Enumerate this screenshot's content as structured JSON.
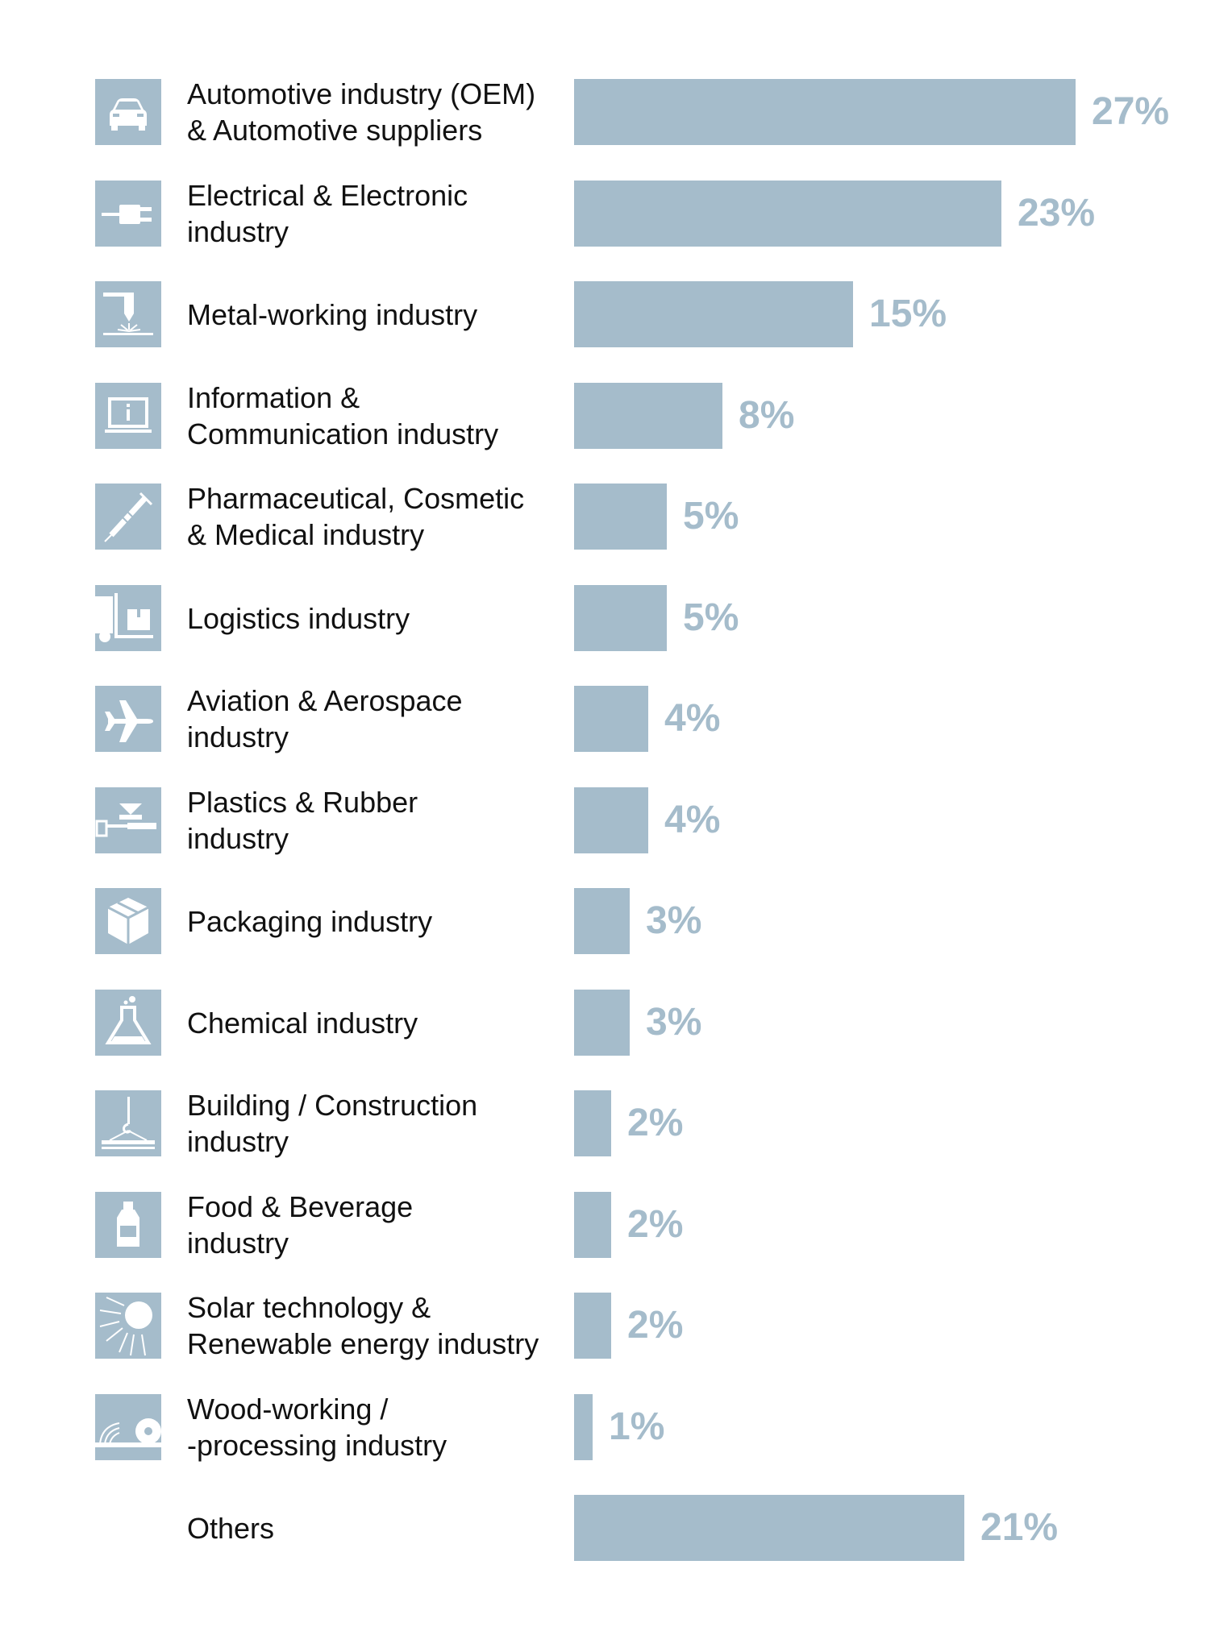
{
  "chart_data": {
    "type": "bar",
    "orientation": "horizontal",
    "xlim": [
      0,
      27
    ],
    "grid": false,
    "legend": "none",
    "bar_color": "#a5bccb",
    "label_color": "#a5bccb",
    "text_color": "#111111",
    "categories": [
      {
        "lines": [
          "Automotive industry (OEM)",
          "& Automotive suppliers"
        ],
        "value": 27,
        "label": "27%",
        "icon": "car-icon"
      },
      {
        "lines": [
          "Electrical & Electronic",
          "industry"
        ],
        "value": 23,
        "label": "23%",
        "icon": "plug-icon"
      },
      {
        "lines": [
          "Metal-working industry"
        ],
        "value": 15,
        "label": "15%",
        "icon": "laser-cutting-icon"
      },
      {
        "lines": [
          "Information &",
          "Communication industry"
        ],
        "value": 8,
        "label": "8%",
        "icon": "monitor-info-icon"
      },
      {
        "lines": [
          "Pharmaceutical, Cosmetic",
          "& Medical industry"
        ],
        "value": 5,
        "label": "5%",
        "icon": "syringe-icon"
      },
      {
        "lines": [
          "Logistics industry"
        ],
        "value": 5,
        "label": "5%",
        "icon": "forklift-icon"
      },
      {
        "lines": [
          "Aviation & Aerospace",
          "industry"
        ],
        "value": 4,
        "label": "4%",
        "icon": "airplane-icon"
      },
      {
        "lines": [
          "Plastics & Rubber",
          "industry"
        ],
        "value": 4,
        "label": "4%",
        "icon": "injection-molding-icon"
      },
      {
        "lines": [
          "Packaging industry"
        ],
        "value": 3,
        "label": "3%",
        "icon": "box-icon"
      },
      {
        "lines": [
          "Chemical industry"
        ],
        "value": 3,
        "label": "3%",
        "icon": "flask-icon"
      },
      {
        "lines": [
          "Building / Construction",
          "industry"
        ],
        "value": 2,
        "label": "2%",
        "icon": "crane-icon"
      },
      {
        "lines": [
          "Food & Beverage",
          "industry"
        ],
        "value": 2,
        "label": "2%",
        "icon": "bottle-icon"
      },
      {
        "lines": [
          "Solar technology &",
          "Renewable energy industry"
        ],
        "value": 2,
        "label": "2%",
        "icon": "sun-icon"
      },
      {
        "lines": [
          "Wood-working /",
          "-processing industry"
        ],
        "value": 1,
        "label": "1%",
        "icon": "saw-blade-icon"
      },
      {
        "lines": [
          "Others"
        ],
        "value": 21,
        "label": "21%",
        "icon": ""
      }
    ]
  }
}
